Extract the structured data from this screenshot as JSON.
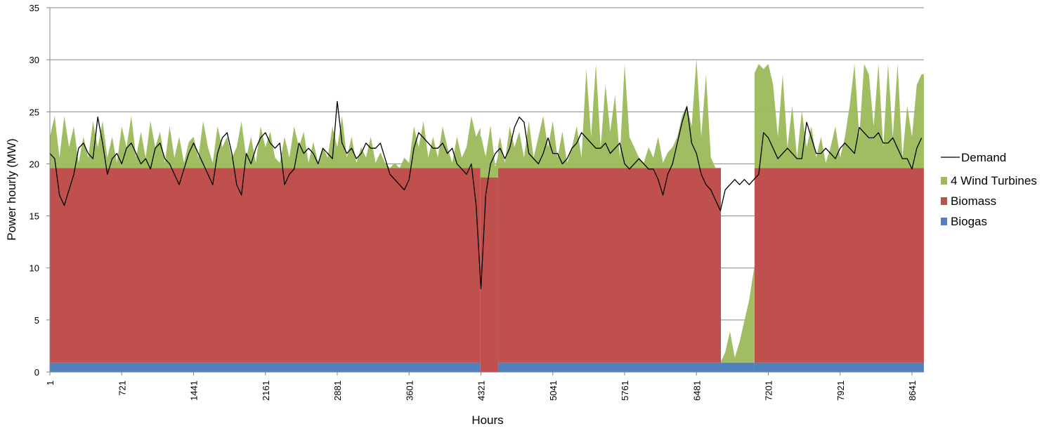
{
  "chart_data": {
    "type": "area",
    "title": "",
    "xlabel": "Hours",
    "ylabel": "Power hourly (MW)",
    "ylim": [
      0,
      35
    ],
    "xlim": [
      1,
      8760
    ],
    "y_ticks": [
      0,
      5,
      10,
      15,
      20,
      25,
      30,
      35
    ],
    "x_ticks": [
      1,
      721,
      1441,
      2161,
      2881,
      3601,
      4321,
      5041,
      5761,
      6481,
      7201,
      7921,
      8641
    ],
    "grid": "horizontal",
    "legend_position": "right",
    "colors": {
      "demand": "#000000",
      "wind": "#9bbb59",
      "biomass": "#c0504d",
      "biogas": "#4f81bd",
      "grid": "#868686"
    },
    "legend": [
      "Demand",
      "4 Wind Turbines",
      "Biomass",
      "Biogas"
    ],
    "sample_step_hours": 48,
    "stacked_series": {
      "biogas": {
        "name": "Biogas",
        "level_mw": 0.9,
        "off_hours": [
          [
            4316,
            4493
          ]
        ]
      },
      "biomass": {
        "name": "Biomass",
        "level_mw": 18.7,
        "off_hours": [
          [
            6726,
            7063
          ]
        ]
      },
      "wind": {
        "name": "4 Wind Turbines",
        "values_mw": [
          3,
          5,
          1,
          5,
          2,
          4,
          0.5,
          3,
          1,
          4.5,
          2,
          4.5,
          1,
          3,
          0.5,
          4,
          2,
          5,
          1,
          3.5,
          1,
          4.5,
          2,
          3.5,
          0.5,
          4,
          1,
          3,
          0.5,
          2.5,
          3,
          1,
          4.5,
          2,
          0.5,
          4,
          2,
          3,
          1,
          2,
          4.5,
          1,
          3,
          0.5,
          4,
          2,
          3.5,
          1,
          0.5,
          3,
          1,
          4,
          2,
          3.5,
          0.5,
          2.5,
          0.5,
          2,
          1,
          4,
          2,
          5,
          1,
          3,
          0.5,
          2,
          1,
          3,
          0.5,
          1.5,
          0.5,
          0,
          0.5,
          0,
          1,
          0.5,
          4,
          2,
          4.5,
          1,
          3,
          1,
          4,
          2,
          0.5,
          3,
          1,
          2,
          5,
          3,
          4,
          2,
          5,
          1,
          3,
          0.5,
          4,
          2,
          3.5,
          1,
          4.5,
          1,
          3,
          5,
          2,
          4.5,
          1,
          3.5,
          0.5,
          2,
          4,
          1,
          9.5,
          3,
          10,
          2,
          8,
          3.5,
          7,
          1,
          10,
          3,
          2,
          1,
          0.5,
          2,
          1,
          3,
          0.5,
          1.5,
          2,
          3,
          5,
          6,
          4,
          10.5,
          3,
          9,
          1,
          0,
          0,
          1,
          3,
          0.5,
          2,
          4,
          6,
          9,
          10,
          9.5,
          10,
          8,
          3,
          9,
          2,
          6,
          1,
          5.5,
          2,
          4,
          1,
          3,
          0.5,
          2,
          4,
          1,
          3,
          6,
          10,
          3,
          10,
          9,
          4,
          10,
          2,
          10,
          3,
          10,
          1,
          6,
          3,
          8,
          9
        ]
      }
    },
    "demand": {
      "name": "Demand",
      "values_mw": [
        21,
        20.5,
        17,
        16,
        17.5,
        19,
        21.5,
        22,
        21,
        20.5,
        24.5,
        22,
        19,
        20.5,
        21,
        20,
        21.5,
        22,
        21,
        20,
        20.5,
        19.5,
        21.5,
        22,
        20.5,
        20,
        19,
        18,
        19.5,
        21,
        22,
        21,
        20,
        19,
        18,
        21,
        22.5,
        23,
        21,
        18,
        17,
        21,
        20,
        21.5,
        22.5,
        23,
        22,
        21.5,
        22,
        18,
        19,
        19.5,
        22,
        21,
        21.5,
        21,
        20,
        21.5,
        21,
        20.5,
        26,
        22,
        21,
        21.5,
        20.5,
        21,
        22,
        21.5,
        21.5,
        22,
        20.5,
        19,
        18.5,
        18,
        17.5,
        18.5,
        21.5,
        23,
        22.5,
        22,
        21.5,
        21.5,
        22,
        21,
        21.5,
        20,
        19.5,
        19,
        20,
        16,
        8,
        17,
        20,
        21,
        21.5,
        20.5,
        21.5,
        23.5,
        24.5,
        24,
        21,
        20.5,
        20,
        21,
        22.5,
        21,
        21,
        20,
        20.5,
        21.5,
        22,
        23,
        22.5,
        22,
        21.5,
        21.5,
        22,
        21,
        21.5,
        22,
        20,
        19.5,
        20,
        20.5,
        20,
        19.5,
        19.5,
        18.5,
        17,
        19,
        20,
        22,
        24,
        25.5,
        22,
        21,
        19,
        18,
        17.5,
        16.5,
        15.5,
        17.5,
        18,
        18.5,
        18,
        18.5,
        18,
        18.5,
        19,
        23,
        22.5,
        21.5,
        20.5,
        21,
        21.5,
        21,
        20.5,
        20.5,
        24,
        22.5,
        21,
        21,
        21.5,
        21,
        20.5,
        21.5,
        22,
        21.5,
        21,
        23.5,
        23,
        22.5,
        22.5,
        23,
        22,
        22,
        22.5,
        21.5,
        20.5,
        20.5,
        19.5,
        21.5,
        22.5
      ]
    }
  }
}
